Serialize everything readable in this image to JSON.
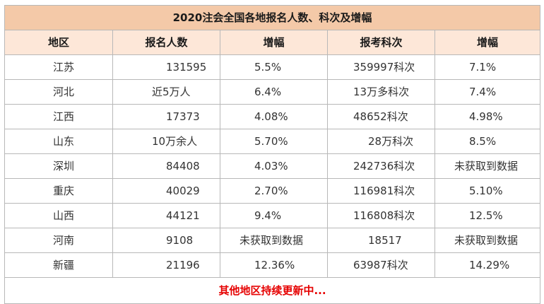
{
  "table": {
    "title": "2020注会全国各地报名人数、科次及增幅",
    "headers": [
      "地区",
      "报名人数",
      "增幅",
      "报考科次",
      "增幅"
    ],
    "rows": [
      {
        "region": "江苏",
        "applicants": "131595",
        "growth1": "5.5%",
        "subjects": "359997科次",
        "growth2": "7.1%"
      },
      {
        "region": "河北",
        "applicants": "近5万人",
        "growth1": "6.4%",
        "subjects": "13万多科次",
        "growth2": "7.4%"
      },
      {
        "region": "江西",
        "applicants": "17373",
        "growth1": "4.08%",
        "subjects": "48652科次",
        "growth2": "4.98%"
      },
      {
        "region": "山东",
        "applicants": "10万余人",
        "growth1": "5.70%",
        "subjects": "28万科次",
        "growth2": "8.5%"
      },
      {
        "region": "深圳",
        "applicants": "84408",
        "growth1": "4.03%",
        "subjects": "242736科次",
        "growth2": "未获取到数据"
      },
      {
        "region": "重庆",
        "applicants": "40029",
        "growth1": "2.70%",
        "subjects": "116981科次",
        "growth2": "5.10%"
      },
      {
        "region": "山西",
        "applicants": "44121",
        "growth1": "9.4%",
        "subjects": "116808科次",
        "growth2": "12.5%"
      },
      {
        "region": "河南",
        "applicants": "9108",
        "growth1": "未获取到数据",
        "subjects": "18517",
        "growth2": "未获取到数据"
      },
      {
        "region": "新疆",
        "applicants": "21196",
        "growth1": "12.36%",
        "subjects": "63987科次",
        "growth2": "14.29%"
      }
    ],
    "footer": "其他地区持续更新中...",
    "colors": {
      "title_bg": "#f4c9a8",
      "header_bg": "#fde7d8",
      "footer_text": "#e60000",
      "border": "#b8b8b8"
    }
  }
}
